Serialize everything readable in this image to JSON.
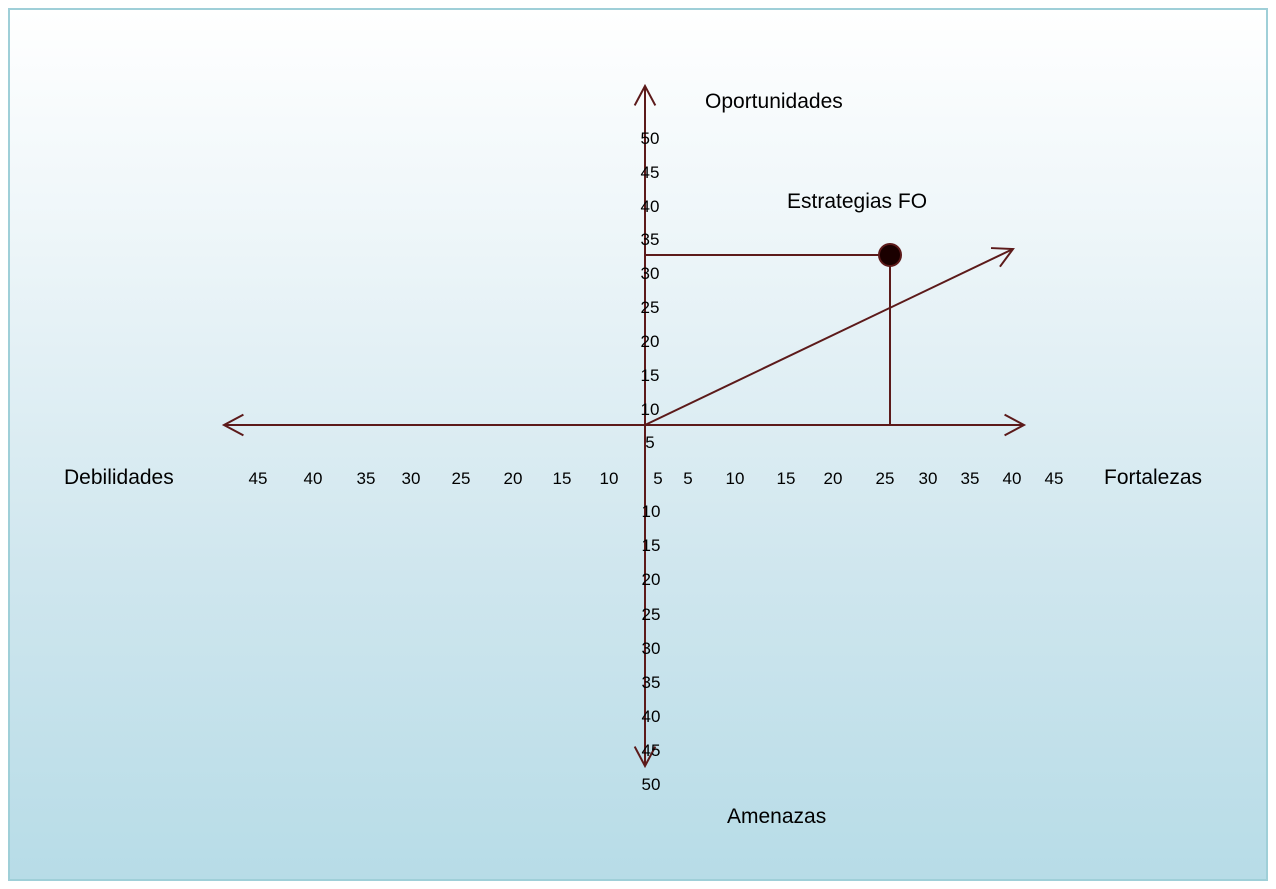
{
  "chart_data": {
    "type": "scatter",
    "axes": {
      "x_positive_label": "Fortalezas",
      "x_negative_label": "Debilidades",
      "y_positive_label": "Oportunidades",
      "y_negative_label": "Amenazas"
    },
    "x_ticks_positive": [
      "5",
      "10",
      "15",
      "20",
      "25",
      "30",
      "35",
      "40",
      "45"
    ],
    "x_ticks_negative": [
      "5",
      "10",
      "15",
      "20",
      "25",
      "30",
      "35",
      "40",
      "45"
    ],
    "y_ticks_positive": [
      "5",
      "10",
      "15",
      "20",
      "25",
      "30",
      "35",
      "40",
      "45",
      "50"
    ],
    "y_ticks_negative": [
      "10",
      "15",
      "20",
      "25",
      "30",
      "35",
      "40",
      "45",
      "50"
    ],
    "xlim": [
      -45,
      45
    ],
    "ylim": [
      -50,
      50
    ],
    "point": {
      "x": 25,
      "y": 25
    },
    "strategy_vector": {
      "to": {
        "x": 40,
        "y": 35
      }
    },
    "strategy_label": "Estrategias FO",
    "colors": {
      "axis": "#5c1a1a",
      "point": "#1a0000"
    }
  }
}
